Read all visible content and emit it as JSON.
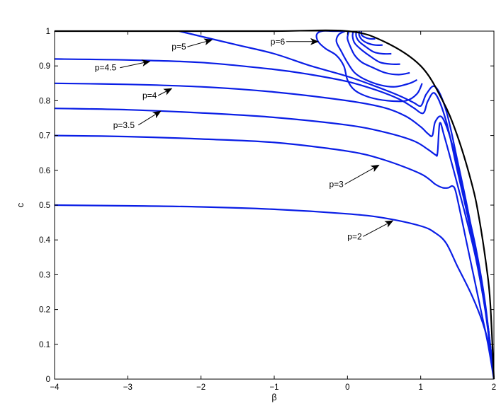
{
  "chart_data": {
    "type": "line",
    "title": "",
    "xlabel": "β",
    "ylabel": "c",
    "xlim": [
      -4,
      2
    ],
    "ylim": [
      0,
      1
    ],
    "xticks": [
      "−4",
      "−3",
      "−2",
      "−1",
      "0",
      "1",
      "2"
    ],
    "yticks": [
      "0",
      "0.1",
      "0.2",
      "0.3",
      "0.4",
      "0.5",
      "0.6",
      "0.7",
      "0.8",
      "0.9",
      "1"
    ],
    "grid": false,
    "colors": {
      "series": "#0a1ee6",
      "boundary": "#000000",
      "arrow": "#000000"
    },
    "boundary": {
      "x": [
        -4,
        -2,
        -1,
        0,
        0.5,
        1.0,
        1.3,
        1.5,
        1.7,
        1.8,
        1.9,
        1.95,
        2.0
      ],
      "y": [
        1.0,
        1.0,
        1.0,
        1.0,
        0.97,
        0.9,
        0.8,
        0.7,
        0.56,
        0.46,
        0.32,
        0.22,
        0.0
      ]
    },
    "series": [
      {
        "x": [
          -4,
          -3,
          -2,
          -1,
          0,
          0.5,
          1.0,
          1.2,
          1.35,
          1.5,
          1.7,
          1.85,
          1.95,
          2.0
        ],
        "y": [
          0.5,
          0.498,
          0.495,
          0.488,
          0.475,
          0.463,
          0.44,
          0.42,
          0.39,
          0.325,
          0.24,
          0.16,
          0.08,
          0.0
        ]
      },
      {
        "x": [
          -4,
          -3,
          -2,
          -1,
          0,
          0.5,
          1.0,
          1.2,
          1.3,
          1.38,
          1.43,
          1.47,
          1.52,
          1.62,
          1.72,
          1.82,
          1.92,
          2.0
        ],
        "y": [
          0.7,
          0.697,
          0.69,
          0.68,
          0.655,
          0.63,
          0.59,
          0.56,
          0.55,
          0.55,
          0.555,
          0.545,
          0.5,
          0.4,
          0.3,
          0.2,
          0.1,
          0.0
        ]
      },
      {
        "x": [
          -4,
          -3,
          -2,
          -1,
          0,
          0.5,
          0.9,
          1.1,
          1.2,
          1.23,
          1.26,
          1.32,
          1.45,
          1.6,
          1.75,
          1.88,
          2.0
        ],
        "y": [
          0.778,
          0.774,
          0.765,
          0.752,
          0.73,
          0.71,
          0.685,
          0.66,
          0.645,
          0.65,
          0.735,
          0.7,
          0.6,
          0.48,
          0.35,
          0.2,
          0.0
        ]
      },
      {
        "x": [
          -4,
          -3,
          -2,
          -1,
          0,
          0.5,
          0.8,
          1.0,
          1.1,
          1.16,
          1.2,
          1.3,
          1.45,
          1.6,
          1.75,
          1.88,
          2.0
        ],
        "y": [
          0.85,
          0.847,
          0.84,
          0.825,
          0.8,
          0.78,
          0.755,
          0.725,
          0.705,
          0.7,
          0.74,
          0.75,
          0.66,
          0.52,
          0.38,
          0.22,
          0.0
        ]
      },
      {
        "x": [
          -4,
          -3,
          -2,
          -1,
          -0.5,
          0,
          0.4,
          0.7,
          0.9,
          1.0,
          1.05,
          1.1,
          1.2,
          1.35,
          1.5,
          1.65,
          1.8,
          1.92,
          2.0
        ],
        "y": [
          0.92,
          0.917,
          0.91,
          0.89,
          0.875,
          0.855,
          0.83,
          0.805,
          0.78,
          0.765,
          0.768,
          0.8,
          0.82,
          0.74,
          0.6,
          0.46,
          0.3,
          0.15,
          0.0
        ]
      },
      {
        "x": [
          -2.3,
          -1.5,
          -1.0,
          -0.5,
          0,
          0.4,
          0.7,
          0.9,
          0.98,
          1.02,
          1.08,
          1.2,
          1.35,
          1.5,
          1.65,
          1.8,
          1.92,
          2.0
        ],
        "y": [
          1.0,
          0.96,
          0.935,
          0.9,
          0.87,
          0.84,
          0.815,
          0.795,
          0.785,
          0.79,
          0.82,
          0.84,
          0.77,
          0.63,
          0.48,
          0.31,
          0.15,
          0.0
        ]
      }
    ],
    "loops": [
      {
        "x": [
          1.02,
          0.95,
          0.8,
          0.55,
          0.3,
          0.1,
          0.0,
          -0.05,
          -0.15,
          -0.3,
          -0.4,
          -0.42,
          -0.35,
          -0.2,
          -0.05
        ],
        "y": [
          0.85,
          0.82,
          0.8,
          0.8,
          0.81,
          0.83,
          0.86,
          0.9,
          0.93,
          0.95,
          0.97,
          0.99,
          1.0,
          1.0,
          1.0
        ]
      },
      {
        "x": [
          0.95,
          0.85,
          0.65,
          0.45,
          0.25,
          0.1,
          0.0,
          -0.08,
          -0.15,
          -0.12,
          -0.03
        ],
        "y": [
          0.86,
          0.85,
          0.84,
          0.845,
          0.86,
          0.88,
          0.91,
          0.94,
          0.97,
          0.99,
          1.0
        ]
      },
      {
        "x": [
          0.85,
          0.7,
          0.52,
          0.35,
          0.2,
          0.1,
          0.03,
          0.0,
          0.02
        ],
        "y": [
          0.88,
          0.875,
          0.88,
          0.895,
          0.91,
          0.93,
          0.96,
          0.98,
          1.0
        ]
      },
      {
        "x": [
          0.72,
          0.6,
          0.45,
          0.33,
          0.2,
          0.1,
          0.07,
          0.08
        ],
        "y": [
          0.905,
          0.905,
          0.91,
          0.925,
          0.945,
          0.965,
          0.985,
          1.0
        ]
      },
      {
        "x": [
          0.6,
          0.48,
          0.36,
          0.25,
          0.16,
          0.12,
          0.12
        ],
        "y": [
          0.935,
          0.935,
          0.94,
          0.955,
          0.97,
          0.985,
          1.0
        ]
      },
      {
        "x": [
          0.48,
          0.38,
          0.28,
          0.2,
          0.16,
          0.16
        ],
        "y": [
          0.96,
          0.96,
          0.965,
          0.975,
          0.988,
          1.0
        ]
      },
      {
        "x": [
          0.38,
          0.3,
          0.23,
          0.19,
          0.19
        ],
        "y": [
          0.978,
          0.978,
          0.983,
          0.99,
          1.0
        ]
      }
    ],
    "annotations": [
      {
        "text": "p=2",
        "tx": 0.0,
        "ty": 0.41,
        "x": 0.62,
        "y": 0.455
      },
      {
        "text": "p=3",
        "tx": -0.25,
        "ty": 0.56,
        "x": 0.43,
        "y": 0.615
      },
      {
        "text": "p=3.5",
        "tx": -3.2,
        "ty": 0.73,
        "x": -2.55,
        "y": 0.77
      },
      {
        "text": "p=4",
        "tx": -2.8,
        "ty": 0.815,
        "x": -2.4,
        "y": 0.835
      },
      {
        "text": "p=4.5",
        "tx": -3.45,
        "ty": 0.895,
        "x": -2.7,
        "y": 0.913
      },
      {
        "text": "p=5",
        "tx": -2.4,
        "ty": 0.955,
        "x": -1.85,
        "y": 0.975
      },
      {
        "text": "p=6",
        "tx": -1.05,
        "ty": 0.97,
        "x": -0.4,
        "y": 0.97
      }
    ]
  }
}
